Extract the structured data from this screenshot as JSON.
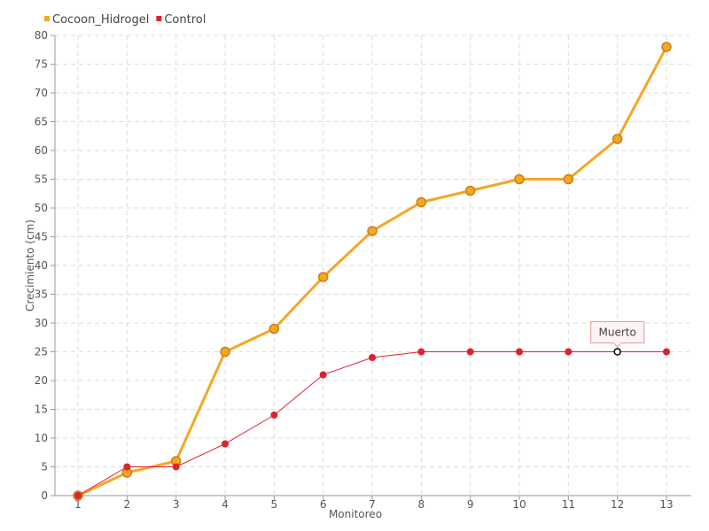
{
  "chart_data": {
    "type": "line",
    "title": "",
    "xlabel": "Monitoreo",
    "ylabel": "Crecimiento (cm)",
    "categories": [
      "1",
      "2",
      "3",
      "4",
      "5",
      "6",
      "7",
      "8",
      "9",
      "10",
      "11",
      "12",
      "13"
    ],
    "ylim": [
      0,
      80
    ],
    "ytick_step": 5,
    "grid": true,
    "legend_position": "top-left",
    "series": [
      {
        "name": "Cocoon_Hidrogel",
        "color": "#f5a623",
        "values": [
          0,
          4,
          6,
          25,
          29,
          38,
          46,
          51,
          53,
          55,
          55,
          62,
          78
        ]
      },
      {
        "name": "Control",
        "color": "#e0202e",
        "values": [
          0,
          5,
          5,
          9,
          14,
          21,
          24,
          25,
          25,
          25,
          25,
          25,
          25
        ]
      }
    ],
    "annotation": {
      "text": "Muerto",
      "series_index": 1,
      "point_index": 11
    }
  }
}
